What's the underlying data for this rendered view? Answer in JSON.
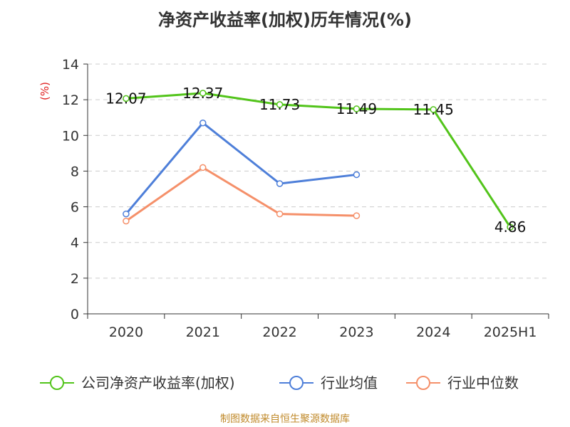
{
  "title": "净资产收益率(加权)历年情况(%)",
  "source": "制图数据来自恒生聚源数据库",
  "colors": {
    "company": "#52c41a",
    "industry_avg": "#4e7fd9",
    "industry_median": "#f5906a",
    "axis": "#333333",
    "grid": "#cccccc",
    "unit": "#e02020"
  },
  "chart_data": {
    "type": "line",
    "title": "净资产收益率(加权)历年情况(%)",
    "ylabel": "(%)",
    "xlabel": "",
    "ylim": [
      0,
      14
    ],
    "yticks": [
      "0",
      "2",
      "4",
      "6",
      "8",
      "10",
      "12",
      "14"
    ],
    "categories": [
      "2020",
      "2021",
      "2022",
      "2023",
      "2024",
      "2025H1"
    ],
    "grid": true,
    "legend_position": "bottom",
    "series": [
      {
        "name": "公司净资产收益率(加权)",
        "color": "#52c41a",
        "values": [
          12.07,
          12.37,
          11.73,
          11.49,
          11.45,
          4.86
        ],
        "labels": [
          "12.07",
          "12.37",
          "11.73",
          "11.49",
          "11.45",
          "4.86"
        ]
      },
      {
        "name": "行业均值",
        "color": "#4e7fd9",
        "values": [
          5.6,
          10.7,
          7.3,
          7.8,
          null,
          null
        ]
      },
      {
        "name": "行业中位数",
        "color": "#f5906a",
        "values": [
          5.2,
          8.2,
          5.6,
          5.5,
          null,
          null
        ]
      }
    ]
  }
}
